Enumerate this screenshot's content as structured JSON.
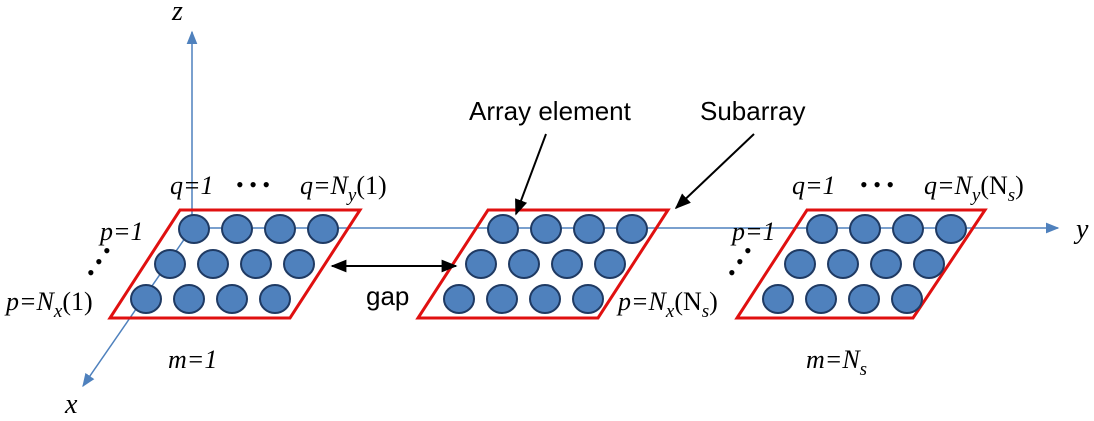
{
  "colors": {
    "axis": "#4f81bd",
    "element_fill": "#4f81bd",
    "element_stroke": "#1f3a63",
    "subarray_border": "#e01010",
    "arrow": "#000000"
  },
  "axes": {
    "x": "x",
    "y": "y",
    "z": "z"
  },
  "labels": {
    "array_element": "Array element",
    "subarray": "Subarray",
    "gap": "gap"
  },
  "sub1": {
    "q_first": "q=1",
    "q_last_base": "q=N",
    "q_last_sub": "y",
    "q_last_arg": "(1)",
    "p_first": "p=1",
    "p_last_base": "p=N",
    "p_last_sub": "x",
    "p_last_arg": "(1)",
    "m_label": "m=1"
  },
  "subNs": {
    "q_first": "q=1",
    "q_last_base": "q=N",
    "q_last_sub": "y",
    "q_last_arg": "(N",
    "q_last_arg_sub": "s",
    "q_last_arg_close": ")",
    "p_first": "p=1",
    "p_last_base": "p=N",
    "p_last_sub": "x",
    "p_last_arg": "(N",
    "p_last_arg_sub": "s",
    "p_last_arg_close": ")",
    "m_base": "m=N",
    "m_sub": "s"
  },
  "ellipsis": "• • •"
}
